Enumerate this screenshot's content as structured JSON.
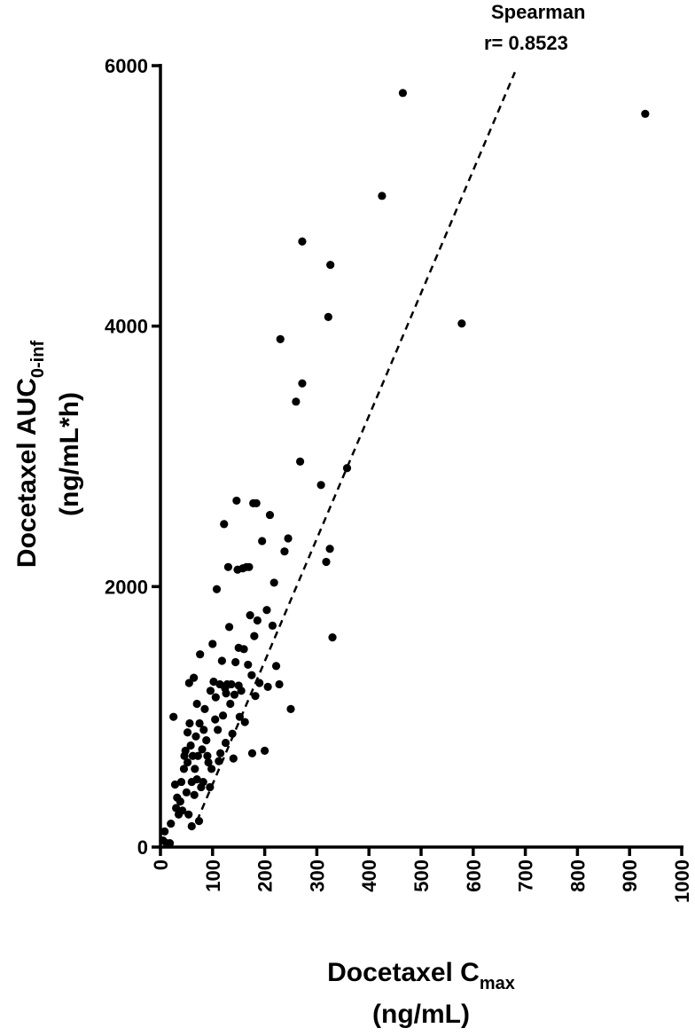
{
  "chart_data": {
    "type": "scatter",
    "xlabel_main": "Docetaxel C",
    "xlabel_sub": "max",
    "xlabel_unit": "(ng/mL)",
    "ylabel_main": "Docetaxel AUC",
    "ylabel_sub": "0-inf",
    "ylabel_unit": "(ng/mL*h)",
    "xlim": [
      0,
      1000
    ],
    "ylim": [
      0,
      6000
    ],
    "xticks": [
      "0",
      "100",
      "200",
      "300",
      "400",
      "500",
      "600",
      "700",
      "800",
      "900",
      "1000"
    ],
    "yticks": [
      "0",
      "2000",
      "4000",
      "6000"
    ],
    "annotation_line1": "Spearman",
    "annotation_line2": "r= 0.8523",
    "trendline": {
      "x": [
        70,
        680
      ],
      "y": [
        200,
        5950
      ]
    },
    "points": [
      [
        5,
        50
      ],
      [
        8,
        120
      ],
      [
        12,
        30
      ],
      [
        18,
        30
      ],
      [
        20,
        180
      ],
      [
        25,
        1000
      ],
      [
        28,
        480
      ],
      [
        30,
        300
      ],
      [
        32,
        380
      ],
      [
        35,
        250
      ],
      [
        38,
        350
      ],
      [
        40,
        500
      ],
      [
        42,
        280
      ],
      [
        45,
        600
      ],
      [
        46,
        700
      ],
      [
        48,
        740
      ],
      [
        50,
        420
      ],
      [
        52,
        650
      ],
      [
        52,
        880
      ],
      [
        54,
        250
      ],
      [
        55,
        1260
      ],
      [
        56,
        950
      ],
      [
        58,
        780
      ],
      [
        60,
        500
      ],
      [
        60,
        160
      ],
      [
        62,
        700
      ],
      [
        64,
        1300
      ],
      [
        65,
        400
      ],
      [
        66,
        600
      ],
      [
        68,
        850
      ],
      [
        70,
        1100
      ],
      [
        70,
        520
      ],
      [
        72,
        700
      ],
      [
        74,
        200
      ],
      [
        75,
        950
      ],
      [
        76,
        1480
      ],
      [
        78,
        460
      ],
      [
        80,
        750
      ],
      [
        82,
        500
      ],
      [
        83,
        900
      ],
      [
        85,
        1060
      ],
      [
        88,
        820
      ],
      [
        90,
        700
      ],
      [
        92,
        650
      ],
      [
        95,
        460
      ],
      [
        96,
        1200
      ],
      [
        98,
        600
      ],
      [
        100,
        1560
      ],
      [
        102,
        1270
      ],
      [
        105,
        980
      ],
      [
        106,
        1150
      ],
      [
        108,
        1980
      ],
      [
        110,
        900
      ],
      [
        112,
        660
      ],
      [
        114,
        1250
      ],
      [
        115,
        720
      ],
      [
        118,
        1430
      ],
      [
        120,
        1010
      ],
      [
        122,
        2480
      ],
      [
        124,
        1220
      ],
      [
        125,
        800
      ],
      [
        126,
        1180
      ],
      [
        128,
        1250
      ],
      [
        130,
        2150
      ],
      [
        132,
        1690
      ],
      [
        134,
        1100
      ],
      [
        136,
        1250
      ],
      [
        138,
        870
      ],
      [
        140,
        680
      ],
      [
        142,
        1170
      ],
      [
        144,
        1420
      ],
      [
        146,
        2660
      ],
      [
        148,
        2130
      ],
      [
        150,
        1530
      ],
      [
        150,
        1240
      ],
      [
        152,
        1000
      ],
      [
        155,
        1200
      ],
      [
        158,
        2140
      ],
      [
        160,
        1520
      ],
      [
        162,
        960
      ],
      [
        165,
        2150
      ],
      [
        168,
        1400
      ],
      [
        170,
        2150
      ],
      [
        172,
        1780
      ],
      [
        175,
        1320
      ],
      [
        176,
        720
      ],
      [
        178,
        2640
      ],
      [
        180,
        1620
      ],
      [
        182,
        1160
      ],
      [
        184,
        2640
      ],
      [
        186,
        1740
      ],
      [
        190,
        1260
      ],
      [
        195,
        2350
      ],
      [
        200,
        740
      ],
      [
        204,
        1820
      ],
      [
        206,
        1230
      ],
      [
        210,
        2550
      ],
      [
        215,
        1700
      ],
      [
        218,
        2030
      ],
      [
        222,
        1390
      ],
      [
        228,
        1250
      ],
      [
        230,
        3900
      ],
      [
        238,
        2270
      ],
      [
        245,
        2370
      ],
      [
        250,
        1060
      ],
      [
        260,
        3420
      ],
      [
        268,
        2960
      ],
      [
        272,
        3560
      ],
      [
        272,
        4650
      ],
      [
        308,
        2780
      ],
      [
        318,
        2190
      ],
      [
        322,
        4070
      ],
      [
        325,
        2290
      ],
      [
        326,
        4470
      ],
      [
        330,
        1610
      ],
      [
        358,
        2910
      ],
      [
        425,
        5000
      ],
      [
        465,
        5790
      ],
      [
        578,
        4020
      ],
      [
        930,
        5630
      ]
    ]
  }
}
